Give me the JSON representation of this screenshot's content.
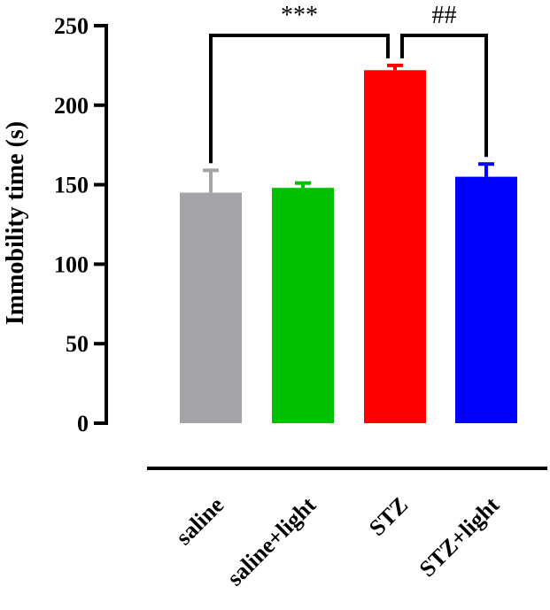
{
  "chart_data": {
    "type": "bar",
    "title": "",
    "xlabel": "",
    "ylabel": "Immobility time (s)",
    "ylim": [
      0,
      250
    ],
    "yticks": [
      0,
      50,
      100,
      150,
      200,
      250
    ],
    "grid": false,
    "legend": "none",
    "categories": [
      "saline",
      "saline+light",
      "STZ",
      "STZ+light"
    ],
    "values": [
      145,
      148,
      222,
      155
    ],
    "errors": [
      14,
      3,
      3,
      8
    ],
    "colors": [
      "#a3a3a8",
      "#00c000",
      "#ff0000",
      "#0000ff"
    ],
    "significance": [
      {
        "from": 0,
        "to": 2,
        "label": "***"
      },
      {
        "from": 2,
        "to": 3,
        "label": "##"
      }
    ]
  }
}
